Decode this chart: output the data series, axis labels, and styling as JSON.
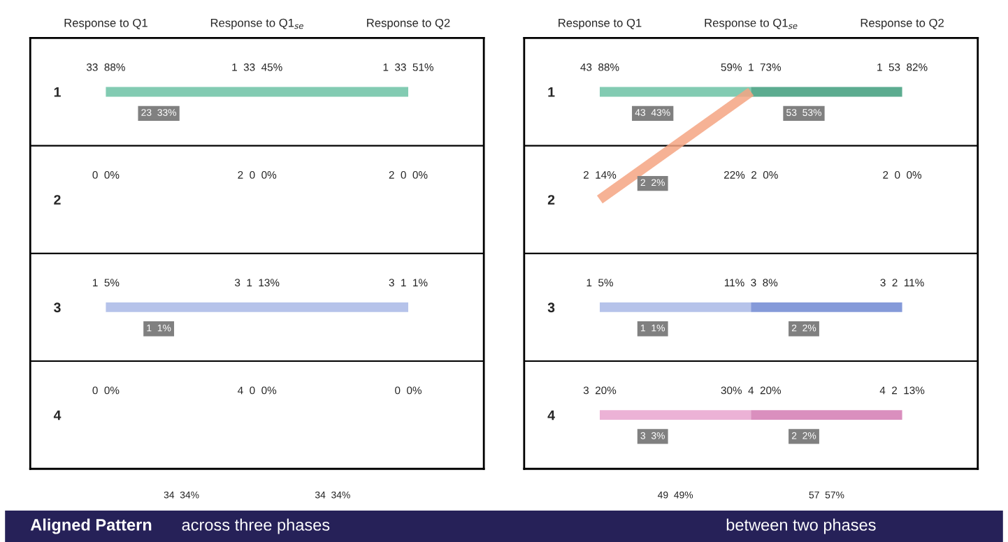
{
  "chart_data": [
    {
      "type": "line",
      "categories": [
        "Response to Q1",
        "Response to Q1$_{se}$",
        "Response to Q2"
      ],
      "ylim": [
        4.5,
        0.5
      ],
      "yticks": [
        1,
        2,
        3,
        4
      ],
      "ref_lines": [
        {
          "axis": "y",
          "value": 1.5
        },
        {
          "axis": "y",
          "value": 2.5
        },
        {
          "axis": "y",
          "value": 3.5
        }
      ],
      "series": [
        {
          "name": "23  33%",
          "color": "#6cc2a4",
          "values": [
            1,
            1,
            1
          ]
        },
        {
          "name": "1  1%",
          "color": "#a9b8e6",
          "values": [
            3,
            3,
            3
          ]
        }
      ],
      "totals": [
        "34  34%",
        "34  34%"
      ],
      "annotations": [
        "33  88%",
        "0  0%",
        "1  5%",
        "0  0%",
        "1  33  45%",
        "2  0  0%",
        "3  1  13%",
        "4  0  0%",
        "1  33  51%",
        "2  0  0%",
        "3  1  1%",
        "0  0%",
        "Aligned Pattern",
        "across three phases"
      ]
    },
    {
      "type": "line",
      "categories": [
        "Response to Q1",
        "Response to Q1$_{se}$",
        "Response to Q2"
      ],
      "ylim": [
        4.5,
        0.5
      ],
      "yticks": [
        1,
        2,
        3,
        4
      ],
      "ref_lines": [
        {
          "axis": "y",
          "value": 1.5
        },
        {
          "axis": "y",
          "value": 2.5
        },
        {
          "axis": "y",
          "value": 3.5
        }
      ],
      "series": [
        {
          "name": "43  43%",
          "color": "#6cc2a4",
          "values": [
            1,
            1,
            null
          ]
        },
        {
          "name": "53  53%",
          "color": "#3f9e7c",
          "values": [
            null,
            1,
            1
          ]
        },
        {
          "name": "2  2%",
          "color": "#f4a582",
          "values": [
            2,
            1,
            null
          ]
        },
        {
          "name": "1  1%",
          "color": "#a9b8e6",
          "values": [
            3,
            3,
            null
          ]
        },
        {
          "name": "2  2%",
          "color": "#7088d2",
          "values": [
            null,
            3,
            3
          ]
        },
        {
          "name": "3  3%",
          "color": "#e9a5cf",
          "values": [
            4,
            4,
            null
          ]
        },
        {
          "name": "2  2%",
          "color": "#d37bb3",
          "values": [
            null,
            4,
            4
          ]
        }
      ],
      "totals": [
        "49  49%",
        "57  57%"
      ],
      "annotations": [
        "43  88%",
        "2  14%",
        "1  5%",
        "3  20%",
        "59%  1  73%",
        "22%  2  0%",
        "11%  3  8%",
        "30%  4  20%",
        "1  53  82%",
        "2  0  0%",
        "3  2  11%",
        "4  2  13%",
        "between two phases"
      ]
    }
  ]
}
